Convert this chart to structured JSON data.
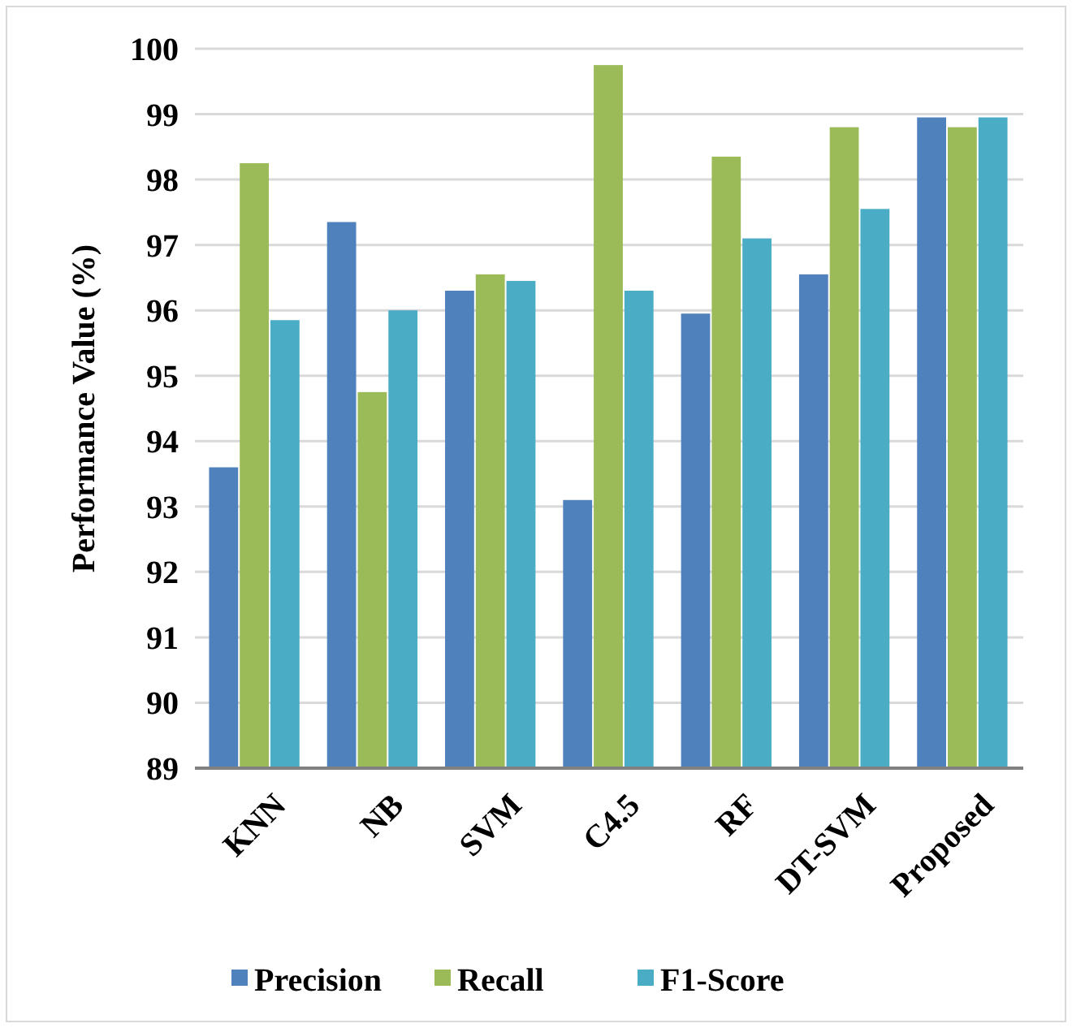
{
  "chart_data": {
    "type": "bar",
    "ylabel": "Performance Value (%)",
    "categories": [
      "KNN",
      "NB",
      "SVM",
      "C4.5",
      "RF",
      "DT-SVM",
      "Proposed"
    ],
    "series": [
      {
        "name": "Precision",
        "color": "#4f81bd",
        "values": [
          93.6,
          97.35,
          96.3,
          93.1,
          95.95,
          96.55,
          98.95
        ]
      },
      {
        "name": "Recall",
        "color": "#9bbb59",
        "values": [
          98.25,
          94.75,
          96.55,
          99.75,
          98.35,
          98.8,
          98.8
        ]
      },
      {
        "name": "F1-Score",
        "color": "#4bacc6",
        "values": [
          95.85,
          96.0,
          96.45,
          96.3,
          97.1,
          97.55,
          98.95
        ]
      }
    ],
    "ylim": [
      89,
      100
    ],
    "yticks": [
      89,
      90,
      91,
      92,
      93,
      94,
      95,
      96,
      97,
      98,
      99,
      100
    ],
    "grid": "y",
    "legend": "bottom"
  }
}
